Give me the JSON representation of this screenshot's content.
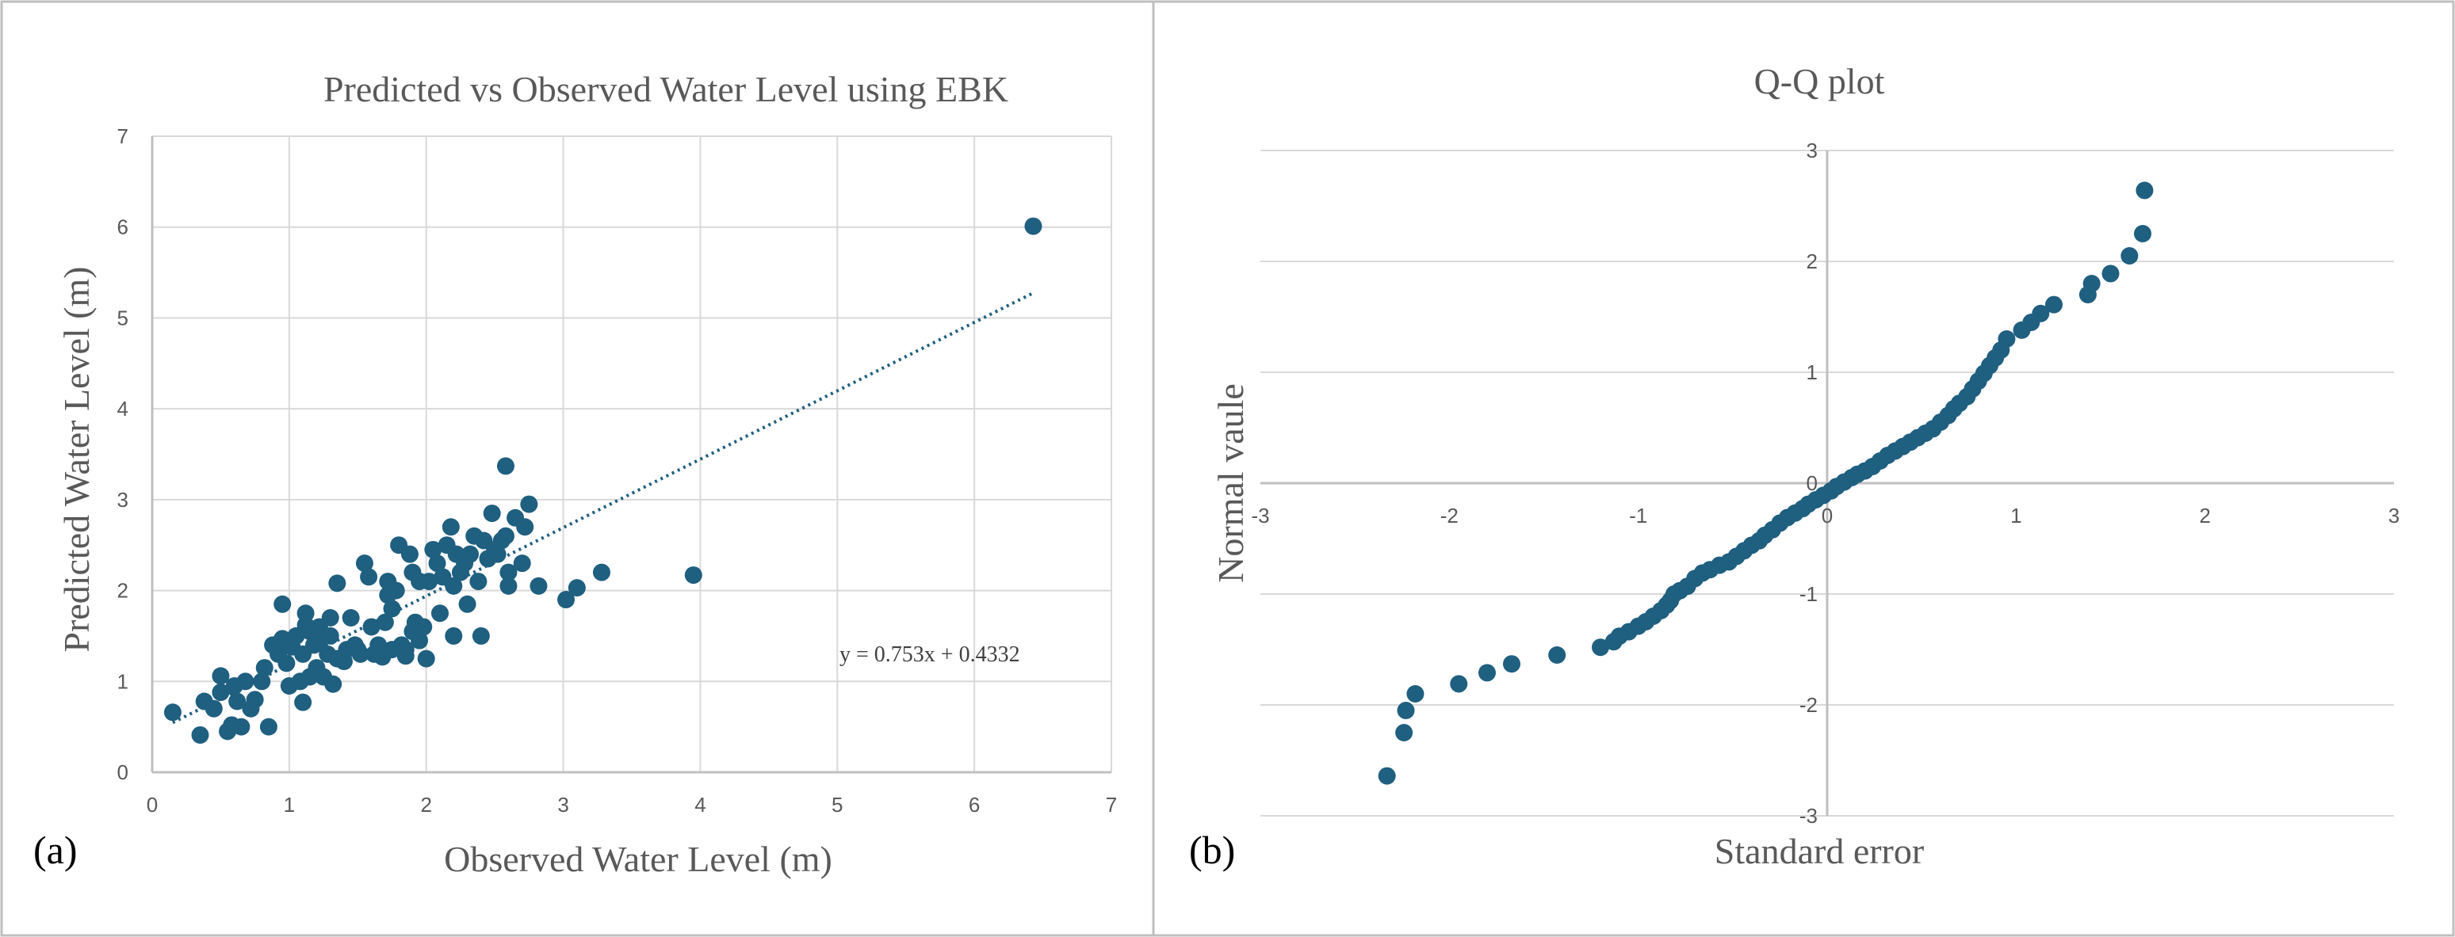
{
  "colors": {
    "marker": "#1f5f7f",
    "trendline": "#1f5f7f",
    "grid": "#d9d9d9",
    "axis": "#bfbfbf",
    "frame": "#bfbfbf"
  },
  "chart_data": [
    {
      "type": "scatter",
      "panel_label": "(a)",
      "title": "Predicted vs Observed Water Level using EBK",
      "xlabel": "Observed Water Level (m)",
      "ylabel": "Predicted Water Level (m)",
      "xlim": [
        0,
        7
      ],
      "ylim": [
        0,
        7
      ],
      "xticks": [
        0,
        1,
        2,
        3,
        4,
        5,
        6,
        7
      ],
      "yticks": [
        0,
        1,
        2,
        3,
        4,
        5,
        6,
        7
      ],
      "grid": "vertical and horizontal major",
      "trendline": {
        "type": "linear",
        "slope": 0.753,
        "intercept": 0.4332,
        "x_range": [
          0.15,
          6.43
        ],
        "style": "dotted"
      },
      "equation_label": "y = 0.753x + 0.4332",
      "points": [
        [
          0.15,
          0.66
        ],
        [
          0.35,
          0.41
        ],
        [
          0.38,
          0.78
        ],
        [
          0.45,
          0.7
        ],
        [
          0.5,
          0.88
        ],
        [
          0.5,
          1.06
        ],
        [
          0.55,
          0.45
        ],
        [
          0.58,
          0.52
        ],
        [
          0.6,
          0.95
        ],
        [
          0.62,
          0.78
        ],
        [
          0.65,
          0.5
        ],
        [
          0.68,
          1.0
        ],
        [
          0.72,
          0.7
        ],
        [
          0.75,
          0.8
        ],
        [
          0.8,
          1.0
        ],
        [
          0.82,
          1.15
        ],
        [
          0.85,
          0.5
        ],
        [
          0.88,
          1.4
        ],
        [
          0.92,
          1.3
        ],
        [
          0.95,
          1.85
        ],
        [
          0.95,
          1.47
        ],
        [
          0.98,
          1.2
        ],
        [
          1.0,
          0.95
        ],
        [
          1.02,
          1.38
        ],
        [
          1.05,
          1.5
        ],
        [
          1.08,
          1.0
        ],
        [
          1.1,
          0.77
        ],
        [
          1.1,
          1.3
        ],
        [
          1.12,
          1.62
        ],
        [
          1.12,
          1.75
        ],
        [
          1.15,
          1.05
        ],
        [
          1.15,
          1.55
        ],
        [
          1.18,
          1.4
        ],
        [
          1.2,
          1.15
        ],
        [
          1.22,
          1.6
        ],
        [
          1.22,
          1.45
        ],
        [
          1.25,
          1.05
        ],
        [
          1.28,
          1.3
        ],
        [
          1.3,
          1.7
        ],
        [
          1.3,
          1.5
        ],
        [
          1.32,
          0.97
        ],
        [
          1.35,
          1.25
        ],
        [
          1.35,
          2.08
        ],
        [
          1.4,
          1.22
        ],
        [
          1.42,
          1.35
        ],
        [
          1.45,
          1.7
        ],
        [
          1.48,
          1.4
        ],
        [
          1.5,
          1.35
        ],
        [
          1.52,
          1.3
        ],
        [
          1.55,
          2.3
        ],
        [
          1.58,
          2.15
        ],
        [
          1.6,
          1.6
        ],
        [
          1.62,
          1.3
        ],
        [
          1.65,
          1.4
        ],
        [
          1.68,
          1.27
        ],
        [
          1.7,
          1.65
        ],
        [
          1.72,
          1.95
        ],
        [
          1.72,
          2.1
        ],
        [
          1.75,
          1.35
        ],
        [
          1.75,
          1.8
        ],
        [
          1.78,
          2.0
        ],
        [
          1.8,
          2.5
        ],
        [
          1.82,
          1.4
        ],
        [
          1.85,
          1.35
        ],
        [
          1.85,
          1.28
        ],
        [
          1.88,
          2.4
        ],
        [
          1.9,
          1.55
        ],
        [
          1.9,
          2.2
        ],
        [
          1.92,
          1.65
        ],
        [
          1.95,
          1.45
        ],
        [
          1.95,
          2.1
        ],
        [
          1.98,
          1.6
        ],
        [
          2.0,
          1.25
        ],
        [
          2.02,
          2.1
        ],
        [
          2.05,
          2.45
        ],
        [
          2.08,
          2.3
        ],
        [
          2.1,
          1.75
        ],
        [
          2.12,
          2.15
        ],
        [
          2.15,
          2.5
        ],
        [
          2.18,
          2.7
        ],
        [
          2.2,
          1.5
        ],
        [
          2.2,
          2.05
        ],
        [
          2.22,
          2.4
        ],
        [
          2.25,
          2.2
        ],
        [
          2.28,
          2.3
        ],
        [
          2.3,
          1.85
        ],
        [
          2.32,
          2.4
        ],
        [
          2.35,
          2.6
        ],
        [
          2.38,
          2.1
        ],
        [
          2.4,
          1.5
        ],
        [
          2.42,
          2.55
        ],
        [
          2.45,
          2.35
        ],
        [
          2.48,
          2.85
        ],
        [
          2.5,
          2.45
        ],
        [
          2.52,
          2.4
        ],
        [
          2.55,
          2.55
        ],
        [
          2.58,
          2.6
        ],
        [
          2.58,
          3.37
        ],
        [
          2.6,
          2.2
        ],
        [
          2.6,
          2.05
        ],
        [
          2.65,
          2.8
        ],
        [
          2.7,
          2.3
        ],
        [
          2.72,
          2.7
        ],
        [
          2.75,
          2.95
        ],
        [
          2.82,
          2.05
        ],
        [
          3.02,
          1.9
        ],
        [
          3.1,
          2.03
        ],
        [
          3.28,
          2.2
        ],
        [
          3.95,
          2.17
        ],
        [
          6.43,
          6.01
        ]
      ]
    },
    {
      "type": "scatter",
      "panel_label": "(b)",
      "title": "Q-Q plot",
      "xlabel": "Standard error",
      "ylabel": "Normal vaule",
      "xlim": [
        -3,
        3
      ],
      "ylim": [
        -3,
        3
      ],
      "xticks": [
        -3,
        -2,
        -1,
        0,
        1,
        2,
        3
      ],
      "yticks": [
        -3,
        -2,
        -1,
        0,
        1,
        2,
        3
      ],
      "grid": "horizontal major",
      "points": [
        [
          -2.33,
          -2.64
        ],
        [
          -2.24,
          -2.25
        ],
        [
          -2.23,
          -2.05
        ],
        [
          -2.18,
          -1.9
        ],
        [
          -1.95,
          -1.81
        ],
        [
          -1.8,
          -1.71
        ],
        [
          -1.67,
          -1.63
        ],
        [
          -1.43,
          -1.55
        ],
        [
          -1.2,
          -1.48
        ],
        [
          -1.13,
          -1.43
        ],
        [
          -1.1,
          -1.38
        ],
        [
          -1.05,
          -1.34
        ],
        [
          -1.0,
          -1.29
        ],
        [
          -0.96,
          -1.25
        ],
        [
          -0.92,
          -1.2
        ],
        [
          -0.88,
          -1.15
        ],
        [
          -0.85,
          -1.1
        ],
        [
          -0.83,
          -1.06
        ],
        [
          -0.81,
          -1.0
        ],
        [
          -0.78,
          -0.97
        ],
        [
          -0.74,
          -0.93
        ],
        [
          -0.7,
          -0.86
        ],
        [
          -0.66,
          -0.81
        ],
        [
          -0.62,
          -0.78
        ],
        [
          -0.57,
          -0.74
        ],
        [
          -0.52,
          -0.71
        ],
        [
          -0.48,
          -0.66
        ],
        [
          -0.44,
          -0.61
        ],
        [
          -0.4,
          -0.56
        ],
        [
          -0.36,
          -0.52
        ],
        [
          -0.33,
          -0.47
        ],
        [
          -0.29,
          -0.42
        ],
        [
          -0.25,
          -0.36
        ],
        [
          -0.21,
          -0.31
        ],
        [
          -0.17,
          -0.27
        ],
        [
          -0.13,
          -0.23
        ],
        [
          -0.1,
          -0.19
        ],
        [
          -0.06,
          -0.15
        ],
        [
          -0.02,
          -0.11
        ],
        [
          0.02,
          -0.07
        ],
        [
          0.05,
          -0.03
        ],
        [
          0.09,
          0.01
        ],
        [
          0.13,
          0.05
        ],
        [
          0.16,
          0.08
        ],
        [
          0.2,
          0.11
        ],
        [
          0.24,
          0.15
        ],
        [
          0.28,
          0.2
        ],
        [
          0.32,
          0.25
        ],
        [
          0.36,
          0.29
        ],
        [
          0.4,
          0.33
        ],
        [
          0.44,
          0.37
        ],
        [
          0.48,
          0.41
        ],
        [
          0.52,
          0.45
        ],
        [
          0.56,
          0.49
        ],
        [
          0.6,
          0.55
        ],
        [
          0.64,
          0.61
        ],
        [
          0.67,
          0.67
        ],
        [
          0.7,
          0.72
        ],
        [
          0.74,
          0.78
        ],
        [
          0.77,
          0.85
        ],
        [
          0.8,
          0.92
        ],
        [
          0.83,
          0.99
        ],
        [
          0.86,
          1.06
        ],
        [
          0.89,
          1.13
        ],
        [
          0.92,
          1.2
        ],
        [
          0.95,
          1.3
        ],
        [
          1.03,
          1.38
        ],
        [
          1.08,
          1.45
        ],
        [
          1.13,
          1.53
        ],
        [
          1.2,
          1.61
        ],
        [
          1.38,
          1.7
        ],
        [
          1.4,
          1.8
        ],
        [
          1.5,
          1.89
        ],
        [
          1.6,
          2.05
        ],
        [
          1.67,
          2.25
        ],
        [
          1.68,
          2.64
        ]
      ]
    }
  ]
}
